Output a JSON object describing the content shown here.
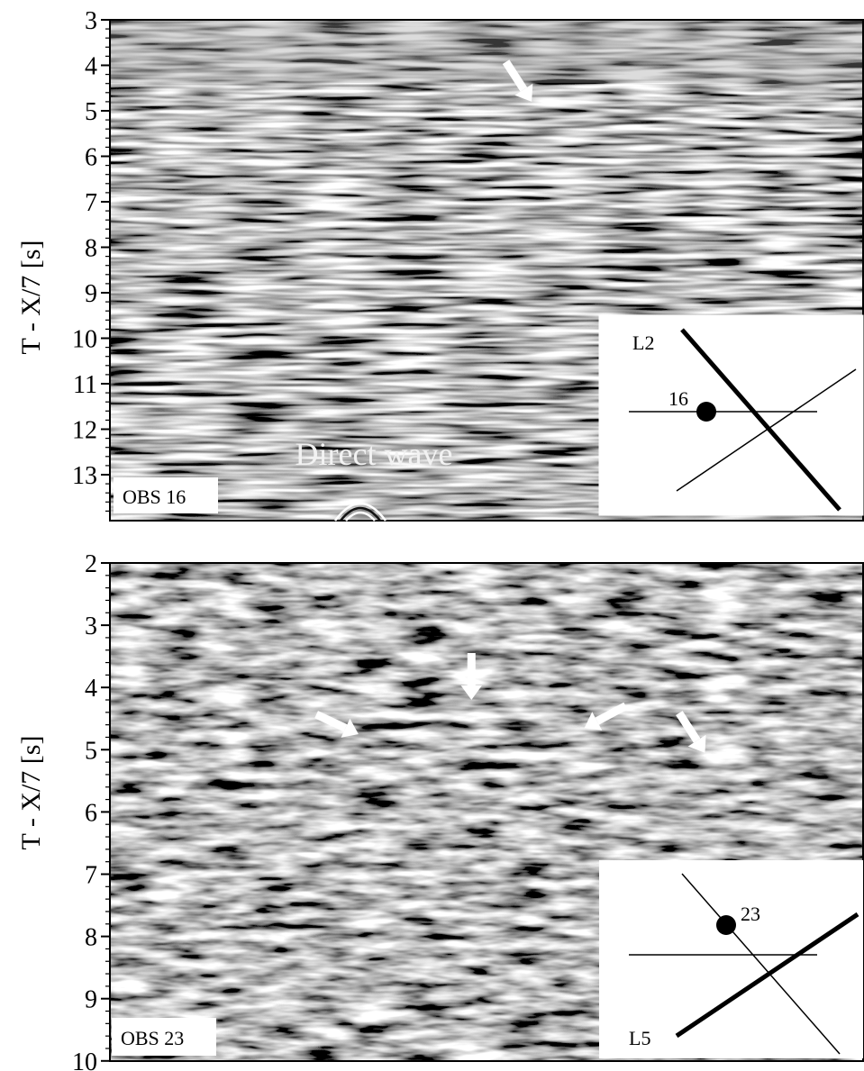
{
  "chart_data": [
    {
      "type": "heatmap",
      "panel": "top",
      "ylabel": "T - X/7 [s]",
      "ylim": [
        3,
        14
      ],
      "y_ticks": [
        "3",
        "4",
        "5",
        "6",
        "7",
        "8",
        "9",
        "10",
        "11",
        "12",
        "13"
      ],
      "station_label": "OBS 16",
      "annotation": "Direct wave",
      "arrows": [
        {
          "x_frac": 0.56,
          "t": 4.8,
          "direction": "down-right"
        }
      ],
      "inset": {
        "station_number": "16",
        "line_label": "L2"
      }
    },
    {
      "type": "heatmap",
      "panel": "bottom",
      "ylabel": "T - X/7 [s]",
      "ylim": [
        2,
        10
      ],
      "y_ticks": [
        "2",
        "3",
        "4",
        "5",
        "6",
        "7",
        "8",
        "9",
        "10"
      ],
      "station_label": "OBS 23",
      "arrows": [
        {
          "x_frac": 0.33,
          "t": 4.75,
          "direction": "right-down"
        },
        {
          "x_frac": 0.48,
          "t": 4.2,
          "direction": "down"
        },
        {
          "x_frac": 0.63,
          "t": 4.65,
          "direction": "left-down"
        },
        {
          "x_frac": 0.79,
          "t": 5.05,
          "direction": "down-right"
        }
      ],
      "inset": {
        "station_number": "23",
        "line_label": "L5"
      }
    }
  ],
  "colors": {
    "background": "#ffffff",
    "axis": "#000000",
    "arrow": "#ffffff",
    "seismic_mid": "#7f7f7f"
  }
}
